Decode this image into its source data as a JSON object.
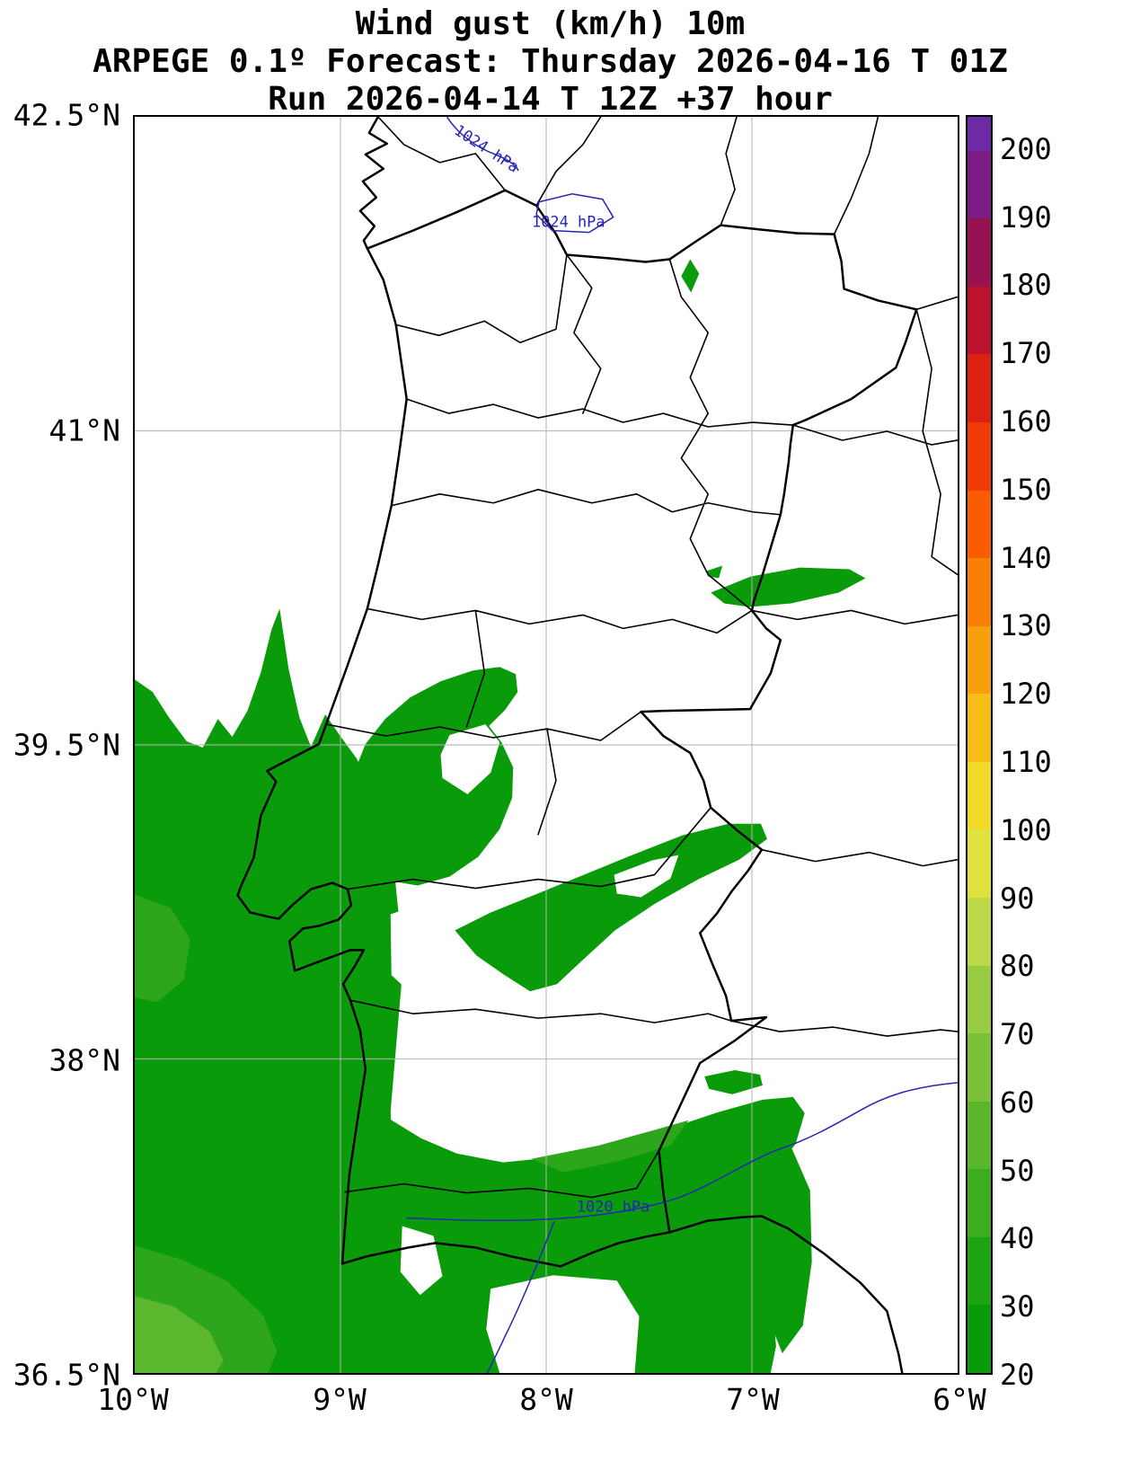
{
  "title": {
    "line1": "Wind gust (km/h) 10m",
    "line2": "ARPEGE 0.1º Forecast: Thursday 2026-04-16 T 01Z",
    "line3": "Run 2026-04-14 T 12Z +37 hour"
  },
  "axes": {
    "lat_ticks": [
      "42.5°N",
      "41°N",
      "39.5°N",
      "38°N",
      "36.5°N"
    ],
    "lon_ticks": [
      "10°W",
      "9°W",
      "8°W",
      "7°W",
      "6°W"
    ]
  },
  "isobars": [
    {
      "label": "1024 hPa"
    },
    {
      "label": "1024 hPa"
    },
    {
      "label": "1020 hPa"
    }
  ],
  "map": {
    "colors": {
      "background": "#ffffff",
      "grid": "#b3b3b3",
      "coast": "#000000",
      "border": "#000000",
      "isobar": "#2525b4",
      "g20": "#0a9b0a",
      "g30": "#2ea61c",
      "g40": "#5bb72e"
    }
  },
  "colorbar": {
    "min": 20,
    "max": 205,
    "ticks": [
      20,
      30,
      40,
      50,
      60,
      70,
      80,
      90,
      100,
      110,
      120,
      130,
      140,
      150,
      160,
      170,
      180,
      190,
      200
    ],
    "segments": [
      {
        "from": 20,
        "to": 30,
        "color": "#0a9b0a"
      },
      {
        "from": 30,
        "to": 40,
        "color": "#1ea313"
      },
      {
        "from": 40,
        "to": 50,
        "color": "#3bad1f"
      },
      {
        "from": 50,
        "to": 60,
        "color": "#5ab72b"
      },
      {
        "from": 60,
        "to": 70,
        "color": "#79c137"
      },
      {
        "from": 70,
        "to": 80,
        "color": "#99cb42"
      },
      {
        "from": 80,
        "to": 90,
        "color": "#bcd748"
      },
      {
        "from": 90,
        "to": 100,
        "color": "#dfe23e"
      },
      {
        "from": 100,
        "to": 110,
        "color": "#f2da28"
      },
      {
        "from": 110,
        "to": 120,
        "color": "#f6bd16"
      },
      {
        "from": 120,
        "to": 130,
        "color": "#f89f0c"
      },
      {
        "from": 130,
        "to": 140,
        "color": "#fa7f05"
      },
      {
        "from": 140,
        "to": 150,
        "color": "#fa5c02"
      },
      {
        "from": 150,
        "to": 160,
        "color": "#f23a06"
      },
      {
        "from": 160,
        "to": 170,
        "color": "#dc2113"
      },
      {
        "from": 170,
        "to": 180,
        "color": "#bc1230"
      },
      {
        "from": 180,
        "to": 190,
        "color": "#971250"
      },
      {
        "from": 190,
        "to": 200,
        "color": "#7c1d86"
      },
      {
        "from": 200,
        "to": 205,
        "color": "#6c2ba5"
      }
    ]
  },
  "chart_data": {
    "type": "heatmap",
    "title": "Wind gust (km/h) 10m",
    "model": "ARPEGE 0.1º",
    "valid_time": "Thursday 2026-04-16 T 01Z",
    "run": "2026-04-14 T 12Z +37 hour",
    "units": "km/h",
    "lon_axis_deg_west": [
      10,
      9,
      8,
      7,
      6
    ],
    "lat_axis_deg_north": [
      36.5,
      38,
      39.5,
      41,
      42.5
    ],
    "colorbar_range": [
      20,
      200
    ],
    "isobars_hpa": [
      1024,
      1024,
      1020
    ],
    "shaded_regions": [
      {
        "area": "Atlantic Ocean west and southwest of Portugal coast",
        "gust_kmh": "20-50"
      },
      {
        "area": "Central Portugal around 39.3-39.7N (Leiria / Santarem)",
        "gust_kmh": "20-35"
      },
      {
        "area": "Interior band ~38.4-38.9N reaching Spanish border",
        "gust_kmh": "20-30"
      },
      {
        "area": "Algarve and western Andalusia ~36.6-37.6N",
        "gust_kmh": "20-45"
      },
      {
        "area": "Small patches near 40N along the Spanish border",
        "gust_kmh": "20-30"
      },
      {
        "area": "Tiny spot near 7.3W 41.8N",
        "gust_kmh": "20-30"
      }
    ]
  }
}
